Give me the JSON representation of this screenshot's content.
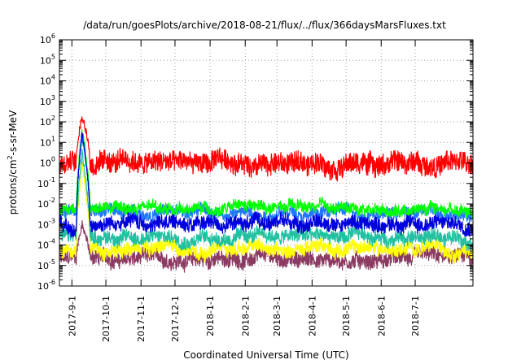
{
  "chart_data": {
    "type": "line",
    "title": "/data/run/goesPlots/archive/2018-08-21/flux/../flux/366daysMarsFluxes.txt",
    "xlabel": "Coordinated Universal Time (UTC)",
    "ylabel": "protons/cm²-s-sr-MeV",
    "ylabel_parts": {
      "prefix": "protons/cm",
      "sup": "2",
      "suffix": "-s-sr-MeV"
    },
    "xlim": [
      "2017-08-21",
      "2018-08-21"
    ],
    "y_scale": "log",
    "ylim": [
      1e-06,
      1000000.0
    ],
    "y_ticks": [
      {
        "base": "10",
        "exp": "-6"
      },
      {
        "base": "10",
        "exp": "-5"
      },
      {
        "base": "10",
        "exp": "-4"
      },
      {
        "base": "10",
        "exp": "-3"
      },
      {
        "base": "10",
        "exp": "-2"
      },
      {
        "base": "10",
        "exp": "-1"
      },
      {
        "base": "10",
        "exp": "0"
      },
      {
        "base": "10",
        "exp": "1"
      },
      {
        "base": "10",
        "exp": "2"
      },
      {
        "base": "10",
        "exp": "3"
      },
      {
        "base": "10",
        "exp": "4"
      },
      {
        "base": "10",
        "exp": "5"
      },
      {
        "base": "10",
        "exp": "6"
      }
    ],
    "x_ticks": [
      {
        "label": "2017-9-1",
        "date": "2017-09-01"
      },
      {
        "label": "2017-10-1",
        "date": "2017-10-01"
      },
      {
        "label": "2017-11-1",
        "date": "2017-11-01"
      },
      {
        "label": "2017-12-1",
        "date": "2017-12-01"
      },
      {
        "label": "2018-1-1",
        "date": "2018-01-01"
      },
      {
        "label": "2018-2-1",
        "date": "2018-02-01"
      },
      {
        "label": "2018-3-1",
        "date": "2018-03-01"
      },
      {
        "label": "2018-4-1",
        "date": "2018-04-01"
      },
      {
        "label": "2018-5-1",
        "date": "2018-05-01"
      },
      {
        "label": "2018-6-1",
        "date": "2018-06-01"
      },
      {
        "label": "2018-7-1",
        "date": "2018-07-01"
      }
    ],
    "grid": true,
    "legend": "none",
    "event": {
      "start": "2017-09-05",
      "peak": "2017-09-10",
      "end": "2017-09-17"
    },
    "series": [
      {
        "color": "#8b3a62",
        "baseline": 2e-05,
        "noise": 0.8,
        "peak": 0.001
      },
      {
        "color": "#ffff00",
        "baseline": 7e-05,
        "noise": 0.7,
        "peak": 1
      },
      {
        "color": "#20c0a0",
        "baseline": 0.00025,
        "noise": 0.7,
        "peak": 3
      },
      {
        "color": "#1f77ff",
        "baseline": 0.004,
        "noise": 0.6,
        "peak": 20
      },
      {
        "color": "#00ff00",
        "baseline": 0.006,
        "noise": 0.55,
        "peak": 40
      },
      {
        "color": "#0000dd",
        "baseline": 0.0012,
        "noise": 0.75,
        "peak": 30
      },
      {
        "color": "#ff0000",
        "baseline": 1.0,
        "noise": 1.1,
        "peak": 200
      }
    ]
  }
}
